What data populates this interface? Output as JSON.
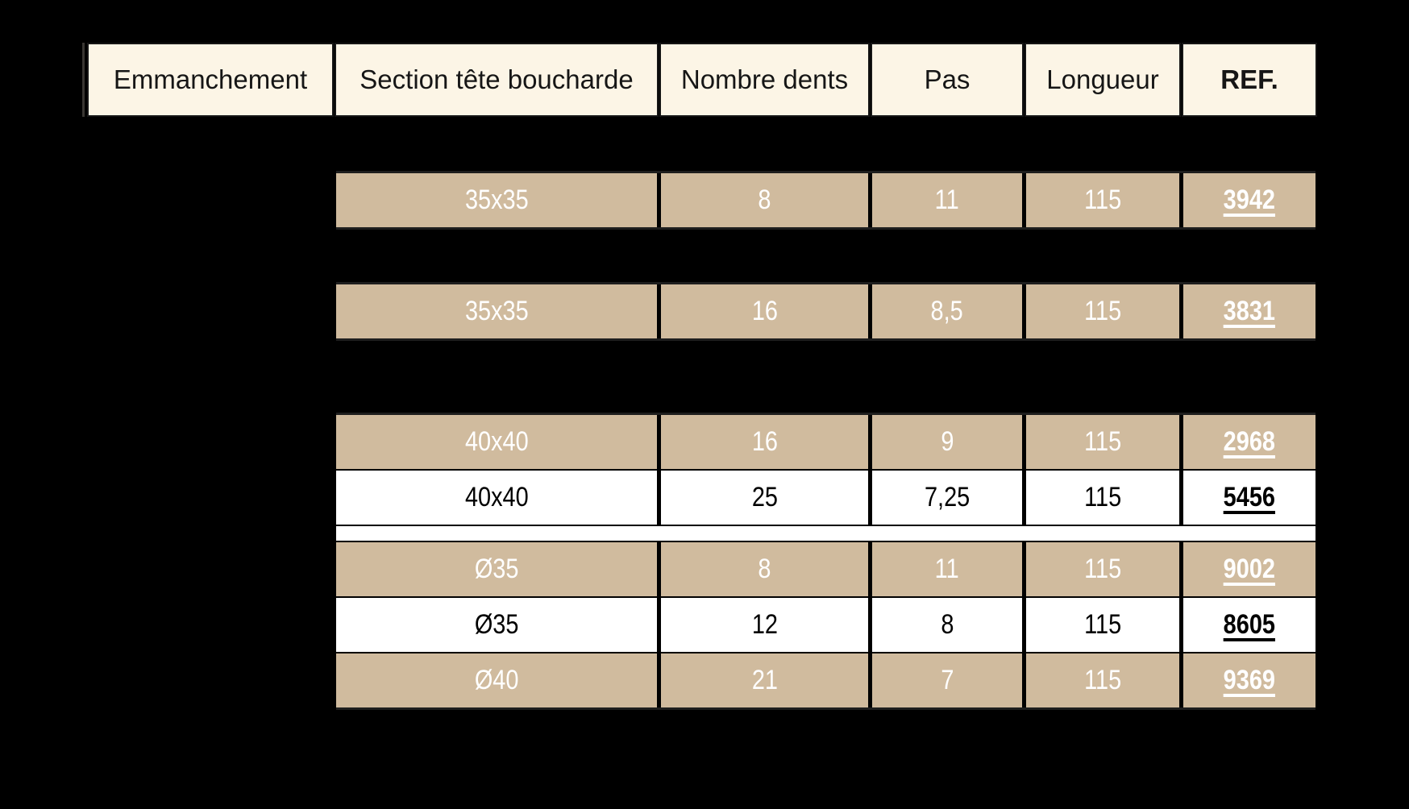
{
  "table": {
    "headers": [
      {
        "label": "Emmanchement"
      },
      {
        "label": "Section tête boucharde"
      },
      {
        "label": "Nombre dents"
      },
      {
        "label": "Pas"
      },
      {
        "label": "Longueur"
      },
      {
        "label": "REF."
      }
    ],
    "groups": [
      {
        "rows": [
          {
            "variant": "tan",
            "section": "35x35",
            "dents": "8",
            "pas": "11",
            "longueur": "115",
            "ref": "3942"
          }
        ]
      },
      {
        "rows": [
          {
            "variant": "tan",
            "section": "35x35",
            "dents": "16",
            "pas": "8,5",
            "longueur": "115",
            "ref": "3831"
          }
        ]
      },
      {
        "rows": [
          {
            "variant": "tan",
            "section": "40x40",
            "dents": "16",
            "pas": "9",
            "longueur": "115",
            "ref": "2968"
          },
          {
            "variant": "white",
            "section": "40x40",
            "dents": "25",
            "pas": "7,25",
            "longueur": "115",
            "ref": "5456"
          },
          {
            "variant": "spacer"
          },
          {
            "variant": "tan",
            "section": "Ø35",
            "dents": "8",
            "pas": "11",
            "longueur": "115",
            "ref": "9002"
          },
          {
            "variant": "white",
            "section": "Ø35",
            "dents": "12",
            "pas": "8",
            "longueur": "115",
            "ref": "8605"
          },
          {
            "variant": "tan",
            "section": "Ø40",
            "dents": "21",
            "pas": "7",
            "longueur": "115",
            "ref": "9369"
          }
        ]
      }
    ]
  },
  "colors": {
    "page_background": "#000000",
    "header_bg": "#fcf5e6",
    "header_text": "#161616",
    "tan_row_bg": "#d0bb9e",
    "tan_row_text": "#ffffff",
    "white_row_bg": "#ffffff",
    "white_row_text": "#000000"
  }
}
